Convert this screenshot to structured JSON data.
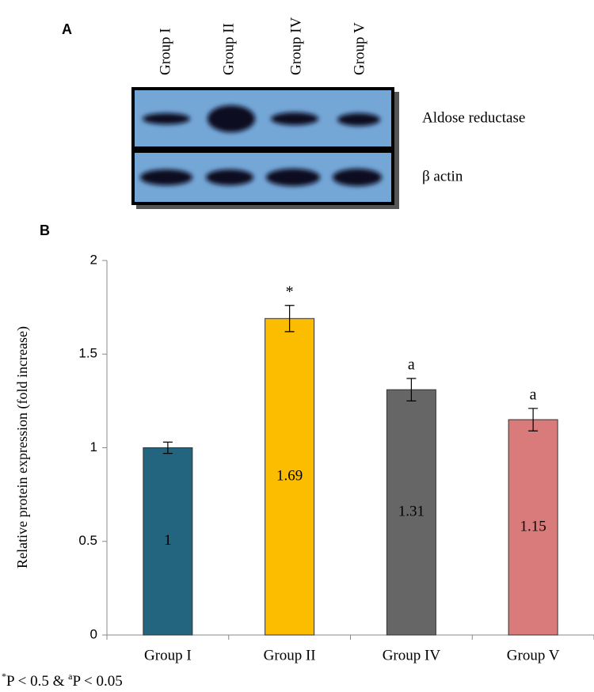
{
  "panel_a": {
    "label": "A",
    "lanes": [
      "Group I",
      "Group II",
      "Group IV",
      "Group V"
    ],
    "rows": [
      "Aldose reductase",
      "β actin"
    ]
  },
  "chart_data": {
    "type": "bar",
    "label": "B",
    "ylabel": "Relative  protein  expression  (fold increase)",
    "categories": [
      "Group I",
      "Group II",
      "Group IV",
      "Group V"
    ],
    "values": [
      1,
      1.69,
      1.31,
      1.15
    ],
    "errors": [
      0.03,
      0.07,
      0.06,
      0.06
    ],
    "annotations": [
      null,
      "*",
      "a",
      "a"
    ],
    "colors": [
      "#23657e",
      "#fcbd00",
      "#666666",
      "#d97b7a"
    ],
    "ylim": [
      0,
      2
    ],
    "yticks": [
      0,
      0.5,
      1,
      1.5,
      2
    ]
  },
  "footnote": {
    "mark1": "*",
    "text1": "P < 0.5 & ",
    "mark2": "a",
    "text2": "P < 0.05"
  }
}
